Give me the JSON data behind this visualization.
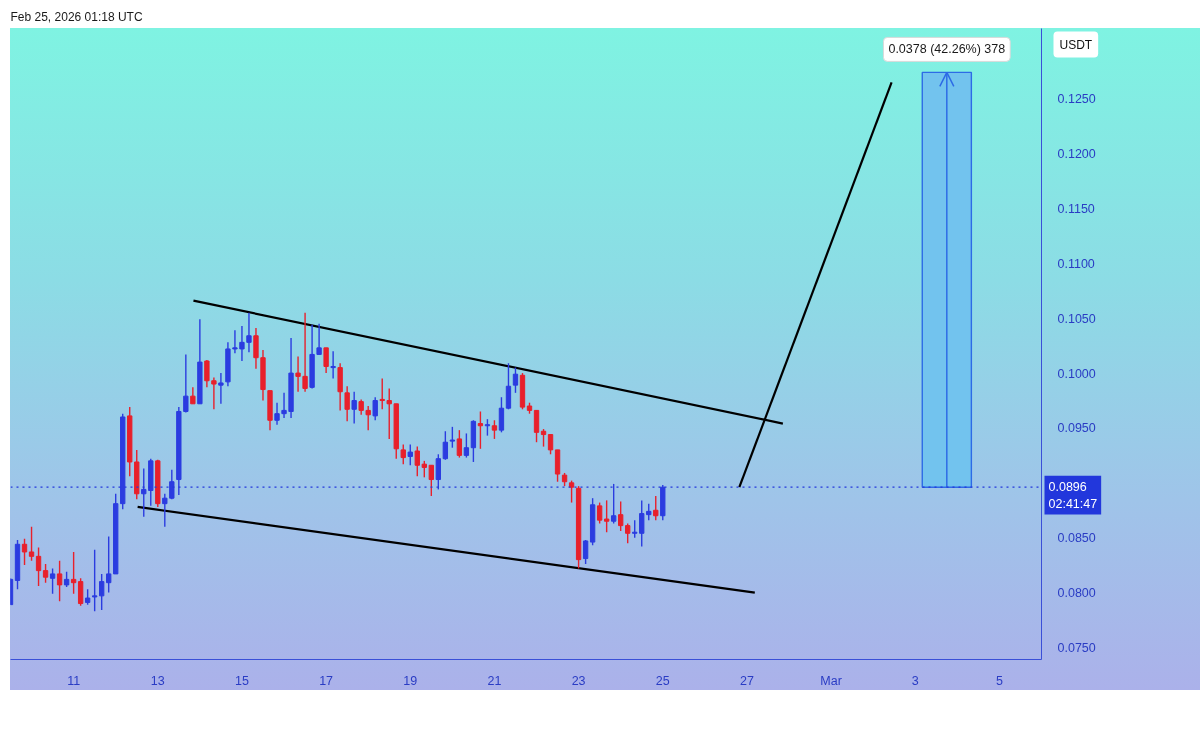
{
  "chart_data": {
    "type": "candlestick",
    "x": [
      "2026-02-09T12:00",
      "2026-02-09T16:00",
      "2026-02-09T20:00",
      "2026-02-10T00:00",
      "2026-02-10T04:00",
      "2026-02-10T08:00",
      "2026-02-10T12:00",
      "2026-02-10T16:00",
      "2026-02-10T20:00",
      "2026-02-11T00:00",
      "2026-02-11T04:00",
      "2026-02-11T08:00",
      "2026-02-11T12:00",
      "2026-02-11T16:00",
      "2026-02-11T20:00",
      "2026-02-12T00:00",
      "2026-02-12T04:00",
      "2026-02-12T08:00",
      "2026-02-12T12:00",
      "2026-02-12T16:00",
      "2026-02-12T20:00",
      "2026-02-13T00:00",
      "2026-02-13T04:00",
      "2026-02-13T08:00",
      "2026-02-13T12:00",
      "2026-02-13T16:00",
      "2026-02-13T20:00",
      "2026-02-14T00:00",
      "2026-02-14T04:00",
      "2026-02-14T08:00",
      "2026-02-14T12:00",
      "2026-02-14T16:00",
      "2026-02-14T20:00",
      "2026-02-15T00:00",
      "2026-02-15T04:00",
      "2026-02-15T08:00",
      "2026-02-15T12:00",
      "2026-02-15T16:00",
      "2026-02-15T20:00",
      "2026-02-16T00:00",
      "2026-02-16T04:00",
      "2026-02-16T08:00",
      "2026-02-16T12:00",
      "2026-02-16T16:00",
      "2026-02-16T20:00",
      "2026-02-17T00:00",
      "2026-02-17T04:00",
      "2026-02-17T08:00",
      "2026-02-17T12:00",
      "2026-02-17T16:00",
      "2026-02-17T20:00",
      "2026-02-18T00:00",
      "2026-02-18T04:00",
      "2026-02-18T08:00",
      "2026-02-18T12:00",
      "2026-02-18T16:00",
      "2026-02-18T20:00",
      "2026-02-19T00:00",
      "2026-02-19T04:00",
      "2026-02-19T08:00",
      "2026-02-19T12:00",
      "2026-02-19T16:00",
      "2026-02-19T20:00",
      "2026-02-20T00:00",
      "2026-02-20T04:00",
      "2026-02-20T08:00",
      "2026-02-20T12:00",
      "2026-02-20T16:00",
      "2026-02-20T20:00",
      "2026-02-21T00:00",
      "2026-02-21T04:00",
      "2026-02-21T08:00",
      "2026-02-21T12:00",
      "2026-02-21T16:00",
      "2026-02-21T20:00",
      "2026-02-22T00:00",
      "2026-02-22T04:00",
      "2026-02-22T08:00",
      "2026-02-22T12:00",
      "2026-02-22T16:00",
      "2026-02-22T20:00",
      "2026-02-23T00:00",
      "2026-02-23T04:00",
      "2026-02-23T08:00",
      "2026-02-23T12:00",
      "2026-02-23T16:00",
      "2026-02-23T20:00",
      "2026-02-24T00:00",
      "2026-02-24T04:00",
      "2026-02-24T08:00",
      "2026-02-24T12:00",
      "2026-02-24T16:00",
      "2026-02-24T20:00",
      "2026-02-25T00:00"
    ],
    "ohlc": [
      [
        0.0789,
        0.0813,
        0.0789,
        0.0812
      ],
      [
        0.0811,
        0.0848,
        0.0803,
        0.0844
      ],
      [
        0.0844,
        0.0849,
        0.0825,
        0.0837
      ],
      [
        0.0837,
        0.086,
        0.0829,
        0.0833
      ],
      [
        0.0833,
        0.0841,
        0.0806,
        0.082
      ],
      [
        0.082,
        0.0826,
        0.0809,
        0.0814
      ],
      [
        0.0813,
        0.0822,
        0.0799,
        0.0817
      ],
      [
        0.0817,
        0.0829,
        0.0792,
        0.0807
      ],
      [
        0.0807,
        0.0819,
        0.0805,
        0.0812
      ],
      [
        0.0812,
        0.0837,
        0.0799,
        0.0809
      ],
      [
        0.081,
        0.0813,
        0.0788,
        0.079
      ],
      [
        0.0791,
        0.0803,
        0.0789,
        0.0795
      ],
      [
        0.0796,
        0.0839,
        0.0783,
        0.0797
      ],
      [
        0.0797,
        0.0817,
        0.0784,
        0.081
      ],
      [
        0.0809,
        0.0851,
        0.08,
        0.0817
      ],
      [
        0.0817,
        0.089,
        0.0817,
        0.0881
      ],
      [
        0.0881,
        0.0963,
        0.0876,
        0.096
      ],
      [
        0.0961,
        0.0969,
        0.0906,
        0.0919
      ],
      [
        0.0919,
        0.093,
        0.0885,
        0.089
      ],
      [
        0.089,
        0.0913,
        0.0869,
        0.0894
      ],
      [
        0.0893,
        0.0922,
        0.0879,
        0.092
      ],
      [
        0.092,
        0.0921,
        0.0878,
        0.0881
      ],
      [
        0.0881,
        0.089,
        0.086,
        0.0886
      ],
      [
        0.0886,
        0.0912,
        0.0885,
        0.0901
      ],
      [
        0.0903,
        0.0969,
        0.0889,
        0.0965
      ],
      [
        0.0965,
        0.1017,
        0.0964,
        0.0979
      ],
      [
        0.0979,
        0.0987,
        0.0972,
        0.0972
      ],
      [
        0.0972,
        0.1049,
        0.0972,
        0.101
      ],
      [
        0.1011,
        0.1012,
        0.0987,
        0.0993
      ],
      [
        0.0993,
        0.0996,
        0.0967,
        0.099
      ],
      [
        0.0989,
        0.1,
        0.0972,
        0.0991
      ],
      [
        0.0992,
        0.1028,
        0.0988,
        0.1022
      ],
      [
        0.1022,
        0.1039,
        0.1018,
        0.1023
      ],
      [
        0.1022,
        0.1043,
        0.1011,
        0.1028
      ],
      [
        0.1028,
        0.1055,
        0.1019,
        0.1034
      ],
      [
        0.1034,
        0.1041,
        0.1004,
        0.1014
      ],
      [
        0.1014,
        0.1021,
        0.0975,
        0.0985
      ],
      [
        0.0984,
        0.0984,
        0.0948,
        0.0957
      ],
      [
        0.0957,
        0.0973,
        0.0953,
        0.0963
      ],
      [
        0.0963,
        0.0982,
        0.0959,
        0.0966
      ],
      [
        0.0965,
        0.1032,
        0.0959,
        0.1
      ],
      [
        0.1,
        0.1015,
        0.0983,
        0.0997
      ],
      [
        0.0997,
        0.1055,
        0.0983,
        0.0986
      ],
      [
        0.0987,
        0.1044,
        0.0986,
        0.1017
      ],
      [
        0.1017,
        0.1045,
        0.1017,
        0.1023
      ],
      [
        0.1023,
        0.1023,
        0.1,
        0.1006
      ],
      [
        0.1005,
        0.102,
        0.0995,
        0.1006
      ],
      [
        0.1005,
        0.1009,
        0.0966,
        0.0983
      ],
      [
        0.0982,
        0.0988,
        0.0956,
        0.0967
      ],
      [
        0.0967,
        0.0983,
        0.0954,
        0.0975
      ],
      [
        0.0974,
        0.0976,
        0.0962,
        0.0966
      ],
      [
        0.0966,
        0.097,
        0.0948,
        0.0962
      ],
      [
        0.0961,
        0.0978,
        0.0957,
        0.0975
      ],
      [
        0.0976,
        0.0995,
        0.0967,
        0.0975
      ],
      [
        0.0975,
        0.0986,
        0.094,
        0.0972
      ],
      [
        0.0972,
        0.0972,
        0.0922,
        0.0931
      ],
      [
        0.093,
        0.0935,
        0.0917,
        0.0923
      ],
      [
        0.0924,
        0.0935,
        0.0916,
        0.0928
      ],
      [
        0.0929,
        0.0933,
        0.0906,
        0.0916
      ],
      [
        0.0917,
        0.092,
        0.0905,
        0.0914
      ],
      [
        0.0916,
        0.0916,
        0.0888,
        0.0903
      ],
      [
        0.0903,
        0.0926,
        0.0894,
        0.0922
      ],
      [
        0.0922,
        0.0947,
        0.0921,
        0.0937
      ],
      [
        0.0938,
        0.0951,
        0.0932,
        0.0939
      ],
      [
        0.094,
        0.0948,
        0.0923,
        0.0925
      ],
      [
        0.0925,
        0.0945,
        0.0923,
        0.0932
      ],
      [
        0.0932,
        0.0957,
        0.0919,
        0.0956
      ],
      [
        0.0954,
        0.0965,
        0.0931,
        0.0952
      ],
      [
        0.0952,
        0.0958,
        0.0943,
        0.0953
      ],
      [
        0.0952,
        0.0957,
        0.094,
        0.0948
      ],
      [
        0.0948,
        0.0978,
        0.0946,
        0.0968
      ],
      [
        0.0968,
        0.1009,
        0.0967,
        0.0988
      ],
      [
        0.0989,
        0.1005,
        0.0982,
        0.0999
      ],
      [
        0.0998,
        0.1,
        0.0967,
        0.0969
      ],
      [
        0.097,
        0.0973,
        0.0963,
        0.0966
      ],
      [
        0.0966,
        0.0966,
        0.0937,
        0.0946
      ],
      [
        0.0947,
        0.0949,
        0.0933,
        0.0944
      ],
      [
        0.0944,
        0.0944,
        0.0926,
        0.093
      ],
      [
        0.093,
        0.093,
        0.0901,
        0.0908
      ],
      [
        0.0907,
        0.0909,
        0.0897,
        0.0901
      ],
      [
        0.09,
        0.0902,
        0.0882,
        0.0896
      ],
      [
        0.0895,
        0.0897,
        0.0822,
        0.083
      ],
      [
        0.0831,
        0.0848,
        0.0826,
        0.0847
      ],
      [
        0.0846,
        0.0886,
        0.0843,
        0.088
      ],
      [
        0.0879,
        0.0882,
        0.0863,
        0.0866
      ],
      [
        0.0867,
        0.0884,
        0.0855,
        0.0865
      ],
      [
        0.0865,
        0.0899,
        0.0863,
        0.087
      ],
      [
        0.0871,
        0.0883,
        0.0856,
        0.0861
      ],
      [
        0.0861,
        0.0863,
        0.0845,
        0.0854
      ],
      [
        0.0854,
        0.0866,
        0.085,
        0.0855
      ],
      [
        0.0854,
        0.0884,
        0.0842,
        0.0872
      ],
      [
        0.0871,
        0.0881,
        0.0866,
        0.0874
      ],
      [
        0.0875,
        0.0888,
        0.0866,
        0.087
      ],
      [
        0.087,
        0.0898,
        0.0866,
        0.0896
      ]
    ],
    "colors": [
      "#2b3ce0",
      "#2b3ce0",
      "#e8202b",
      "#e8202b",
      "#e8202b",
      "#e8202b",
      "#2b3ce0",
      "#e8202b",
      "#2b3ce0",
      "#e8202b",
      "#e8202b",
      "#2b3ce0",
      "#2b3ce0",
      "#2b3ce0",
      "#2b3ce0",
      "#2b3ce0",
      "#2b3ce0",
      "#e8202b",
      "#e8202b",
      "#2b3ce0",
      "#2b3ce0",
      "#e8202b",
      "#2b3ce0",
      "#2b3ce0",
      "#2b3ce0",
      "#2b3ce0",
      "#e8202b",
      "#2b3ce0",
      "#e8202b",
      "#e8202b",
      "#2b3ce0",
      "#2b3ce0",
      "#2b3ce0",
      "#2b3ce0",
      "#2b3ce0",
      "#e8202b",
      "#e8202b",
      "#e8202b",
      "#2b3ce0",
      "#2b3ce0",
      "#2b3ce0",
      "#e8202b",
      "#e8202b",
      "#2b3ce0",
      "#2b3ce0",
      "#e8202b",
      "#2b3ce0",
      "#e8202b",
      "#e8202b",
      "#2b3ce0",
      "#e8202b",
      "#e8202b",
      "#2b3ce0",
      "#e8202b",
      "#e8202b",
      "#e8202b",
      "#e8202b",
      "#2b3ce0",
      "#e8202b",
      "#e8202b",
      "#e8202b",
      "#2b3ce0",
      "#2b3ce0",
      "#2b3ce0",
      "#e8202b",
      "#2b3ce0",
      "#2b3ce0",
      "#e8202b",
      "#2b3ce0",
      "#e8202b",
      "#2b3ce0",
      "#2b3ce0",
      "#2b3ce0",
      "#e8202b",
      "#e8202b",
      "#e8202b",
      "#e8202b",
      "#e8202b",
      "#e8202b",
      "#e8202b",
      "#e8202b",
      "#e8202b",
      "#2b3ce0",
      "#2b3ce0",
      "#e8202b",
      "#e8202b",
      "#2b3ce0",
      "#e8202b",
      "#e8202b",
      "#2b3ce0",
      "#2b3ce0",
      "#2b3ce0",
      "#e8202b",
      "#2b3ce0"
    ],
    "series": [
      {
        "type": "line",
        "x": [
          "2026-02-13T20:20",
          "2026-02-27T20:30"
        ],
        "values": [
          0.1066,
          0.0954
        ],
        "color": "#000000"
      },
      {
        "type": "line",
        "x": [
          "2026-02-12T12:30",
          "2026-02-27T04:30"
        ],
        "values": [
          0.0878,
          0.08
        ],
        "color": "#000000"
      },
      {
        "type": "line",
        "x": [
          "2026-02-26T19:40",
          "2026-03-02T10:30"
        ],
        "values": [
          0.0896,
          0.1265
        ],
        "color": "#000000"
      },
      {
        "type": "bar",
        "x": [
          "2026-03-03T18:00"
        ],
        "values": [
          0.0378
        ],
        "base": [
          0.0896
        ],
        "color": "#72c3ee"
      }
    ],
    "ref_lines": [
      {
        "axis": "y",
        "value": 0.0896,
        "label": "0.0896",
        "color": "#2237dc",
        "line_style": "dotted"
      }
    ],
    "annotations": [
      "Feb 25, 2026 01:18 UTC",
      "02:41:47",
      {
        "text": "0.0378 (42.26%) 378",
        "x": "2026-03-03T18:00",
        "y": 0.1274
      }
    ],
    "ylabel": "USDT",
    "xlim": [
      "2026-02-09T12:00",
      "2026-03-06T00:00"
    ],
    "xticks": [
      {
        "value": "2026-02-11",
        "label": "11"
      },
      {
        "value": "2026-02-13",
        "label": "13"
      },
      {
        "value": "2026-02-15",
        "label": "15"
      },
      {
        "value": "2026-02-17",
        "label": "17"
      },
      {
        "value": "2026-02-19",
        "label": "19"
      },
      {
        "value": "2026-02-21",
        "label": "21"
      },
      {
        "value": "2026-02-23",
        "label": "23"
      },
      {
        "value": "2026-02-25",
        "label": "25"
      },
      {
        "value": "2026-02-27",
        "label": "27"
      },
      {
        "value": "2026-03-01",
        "label": "Mar"
      },
      {
        "value": "2026-03-03",
        "label": "3"
      },
      {
        "value": "2026-03-05",
        "label": "5"
      }
    ],
    "ylim": [
      0.0739,
      0.1314
    ],
    "yticks": [
      {
        "value": 0.075,
        "label": "0.0750"
      },
      {
        "value": 0.08,
        "label": "0.0800"
      },
      {
        "value": 0.085,
        "label": "0.0850"
      },
      {
        "value": 0.095,
        "label": "0.0950"
      },
      {
        "value": 0.1,
        "label": "0.1000"
      },
      {
        "value": 0.105,
        "label": "0.1050"
      },
      {
        "value": 0.11,
        "label": "0.1100"
      },
      {
        "value": 0.115,
        "label": "0.1150"
      },
      {
        "value": 0.12,
        "label": "0.1200"
      },
      {
        "value": 0.125,
        "label": "0.1250"
      }
    ]
  }
}
